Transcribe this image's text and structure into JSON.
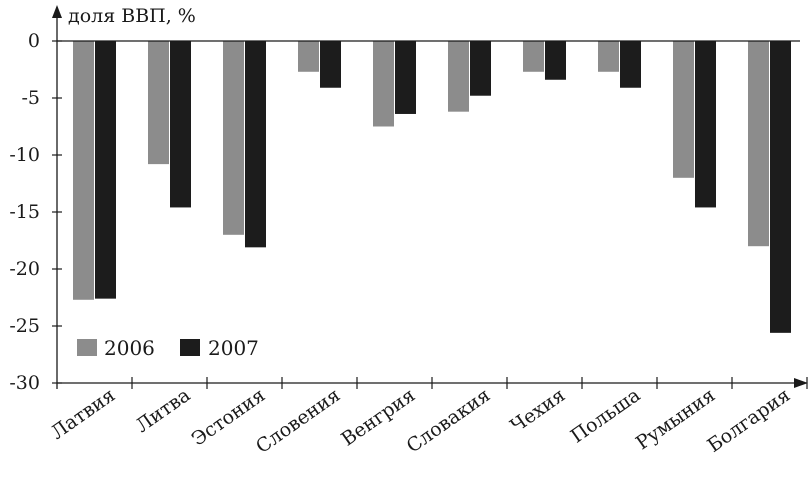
{
  "chart_data": {
    "type": "bar",
    "ylabel": "доля ВВП, %",
    "categories": [
      "Латвия",
      "Литва",
      "Эстония",
      "Словения",
      "Венгрия",
      "Словакия",
      "Чехия",
      "Польша",
      "Румыния",
      "Болгария"
    ],
    "series": [
      {
        "name": "2006",
        "color": "#8c8c8c",
        "values": [
          -22.7,
          -10.8,
          -17.0,
          -2.7,
          -7.5,
          -6.2,
          -2.7,
          -2.7,
          -12.0,
          -18.0
        ]
      },
      {
        "name": "2007",
        "color": "#1c1c1c",
        "values": [
          -22.6,
          -14.6,
          -18.1,
          -4.1,
          -6.4,
          -4.8,
          -3.4,
          -4.1,
          -14.6,
          -25.6
        ]
      }
    ],
    "ylim": [
      -30,
      0
    ],
    "yticks": [
      0,
      -5,
      -10,
      -15,
      -20,
      -25,
      -30
    ],
    "ytick_labels": [
      "0",
      "-5",
      "-10",
      "-15",
      "-20",
      "-25",
      "-30"
    ],
    "legend_position": "bottom-left",
    "grid": false
  }
}
